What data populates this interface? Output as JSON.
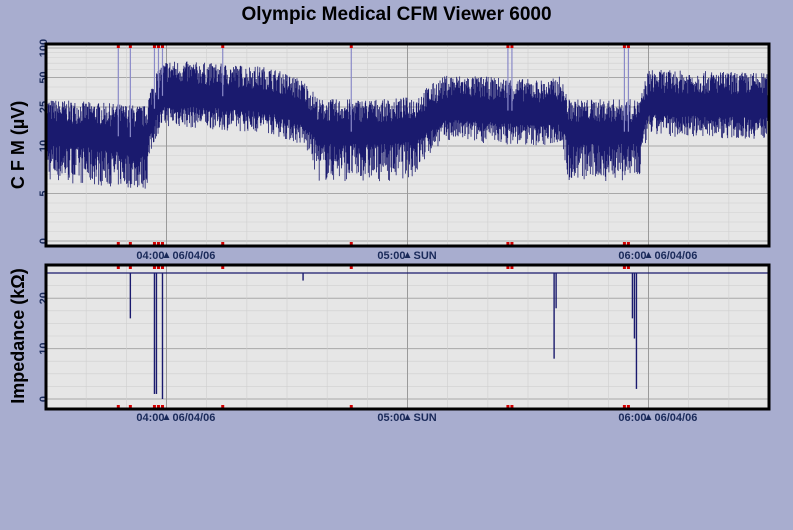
{
  "title": "Olympic Medical CFM Viewer 6000",
  "colors": {
    "background": "#a8adcf",
    "plot_bg": "#e6e6e6",
    "trace": "#1a1a6e",
    "marker": "#d40000",
    "tick_text": "#1a2a5a"
  },
  "chart_data": [
    {
      "type": "line",
      "name": "cfm",
      "ylabel": "C F M (µV)",
      "y_scale": "mixed linear 0-10, log 10-100",
      "yticks": [
        "100",
        "50",
        "25",
        "10",
        "5",
        "0"
      ],
      "ytick_values": [
        100,
        50,
        25,
        10,
        5,
        0
      ],
      "xticks": [
        {
          "time": "04:00",
          "label": "06/04/06"
        },
        {
          "time": "05:00",
          "label": "SUN"
        },
        {
          "time": "06:00",
          "label": "06/04/06"
        }
      ],
      "x_range_min": [
        -30,
        150
      ],
      "grid": true,
      "band_profile_minutes": [
        [
          -30,
          14
        ],
        [
          -5,
          12
        ],
        [
          -2,
          30
        ],
        [
          0,
          35
        ],
        [
          10,
          33
        ],
        [
          25,
          30
        ],
        [
          34,
          22
        ],
        [
          38,
          14
        ],
        [
          55,
          14
        ],
        [
          62,
          15
        ],
        [
          70,
          25
        ],
        [
          85,
          23
        ],
        [
          95,
          22
        ],
        [
          98,
          24
        ],
        [
          100,
          14
        ],
        [
          115,
          14
        ],
        [
          118,
          14
        ],
        [
          120,
          28
        ],
        [
          150,
          26
        ]
      ],
      "event_markers_minutes": [
        -12,
        -9,
        -3,
        -2,
        -1,
        14,
        46,
        85,
        86,
        114,
        115
      ]
    },
    {
      "type": "line",
      "name": "impedance",
      "ylabel": "Impedance (kΩ)",
      "yticks": [
        "20",
        "10",
        "0"
      ],
      "ytick_values": [
        20,
        10,
        0
      ],
      "ylim": [
        -2,
        27
      ],
      "baseline": 25,
      "xticks": [
        {
          "time": "04:00",
          "label": "06/04/06"
        },
        {
          "time": "05:00",
          "label": "SUN"
        },
        {
          "time": "06:00",
          "label": "06/04/06"
        }
      ],
      "x_range_min": [
        -30,
        150
      ],
      "grid": true,
      "dips": [
        {
          "t": -9,
          "min": 16
        },
        {
          "t": -3,
          "min": 1
        },
        {
          "t": -2.5,
          "min": 1
        },
        {
          "t": -1,
          "min": 0
        },
        {
          "t": 34,
          "min": 23.5
        },
        {
          "t": 96.5,
          "min": 8
        },
        {
          "t": 97,
          "min": 18
        },
        {
          "t": 116,
          "min": 16
        },
        {
          "t": 116.5,
          "min": 12
        },
        {
          "t": 117,
          "min": 2
        }
      ],
      "event_markers_minutes": [
        -12,
        -9,
        -3,
        -2,
        -1,
        14,
        46,
        85,
        86,
        114,
        115
      ]
    }
  ]
}
